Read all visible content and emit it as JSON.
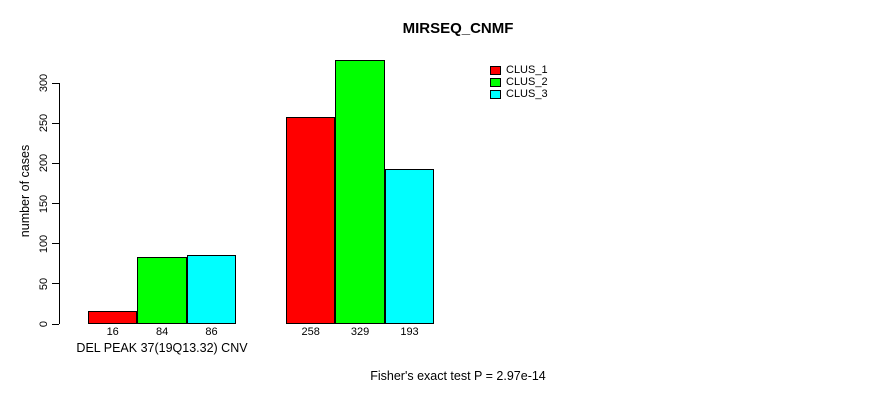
{
  "chart_data": {
    "type": "bar",
    "title": "MIRSEQ_CNMF",
    "ylabel": "number of cases",
    "xlabel": "DEL PEAK 37(19Q13.32) CNV",
    "caption": "Fisher's exact test P = 2.97e-14",
    "ylim": [
      0,
      330
    ],
    "yticks": [
      0,
      50,
      100,
      150,
      200,
      250,
      300
    ],
    "grid": false,
    "legend_position": "top-right",
    "bar_border_color": "#000000",
    "series": [
      {
        "name": "CLUS_1",
        "color": "#ff0000",
        "values": [
          16,
          258
        ]
      },
      {
        "name": "CLUS_2",
        "color": "#00ff00",
        "values": [
          84,
          329
        ]
      },
      {
        "name": "CLUS_3",
        "color": "#00ffff",
        "values": [
          86,
          193
        ]
      }
    ]
  }
}
